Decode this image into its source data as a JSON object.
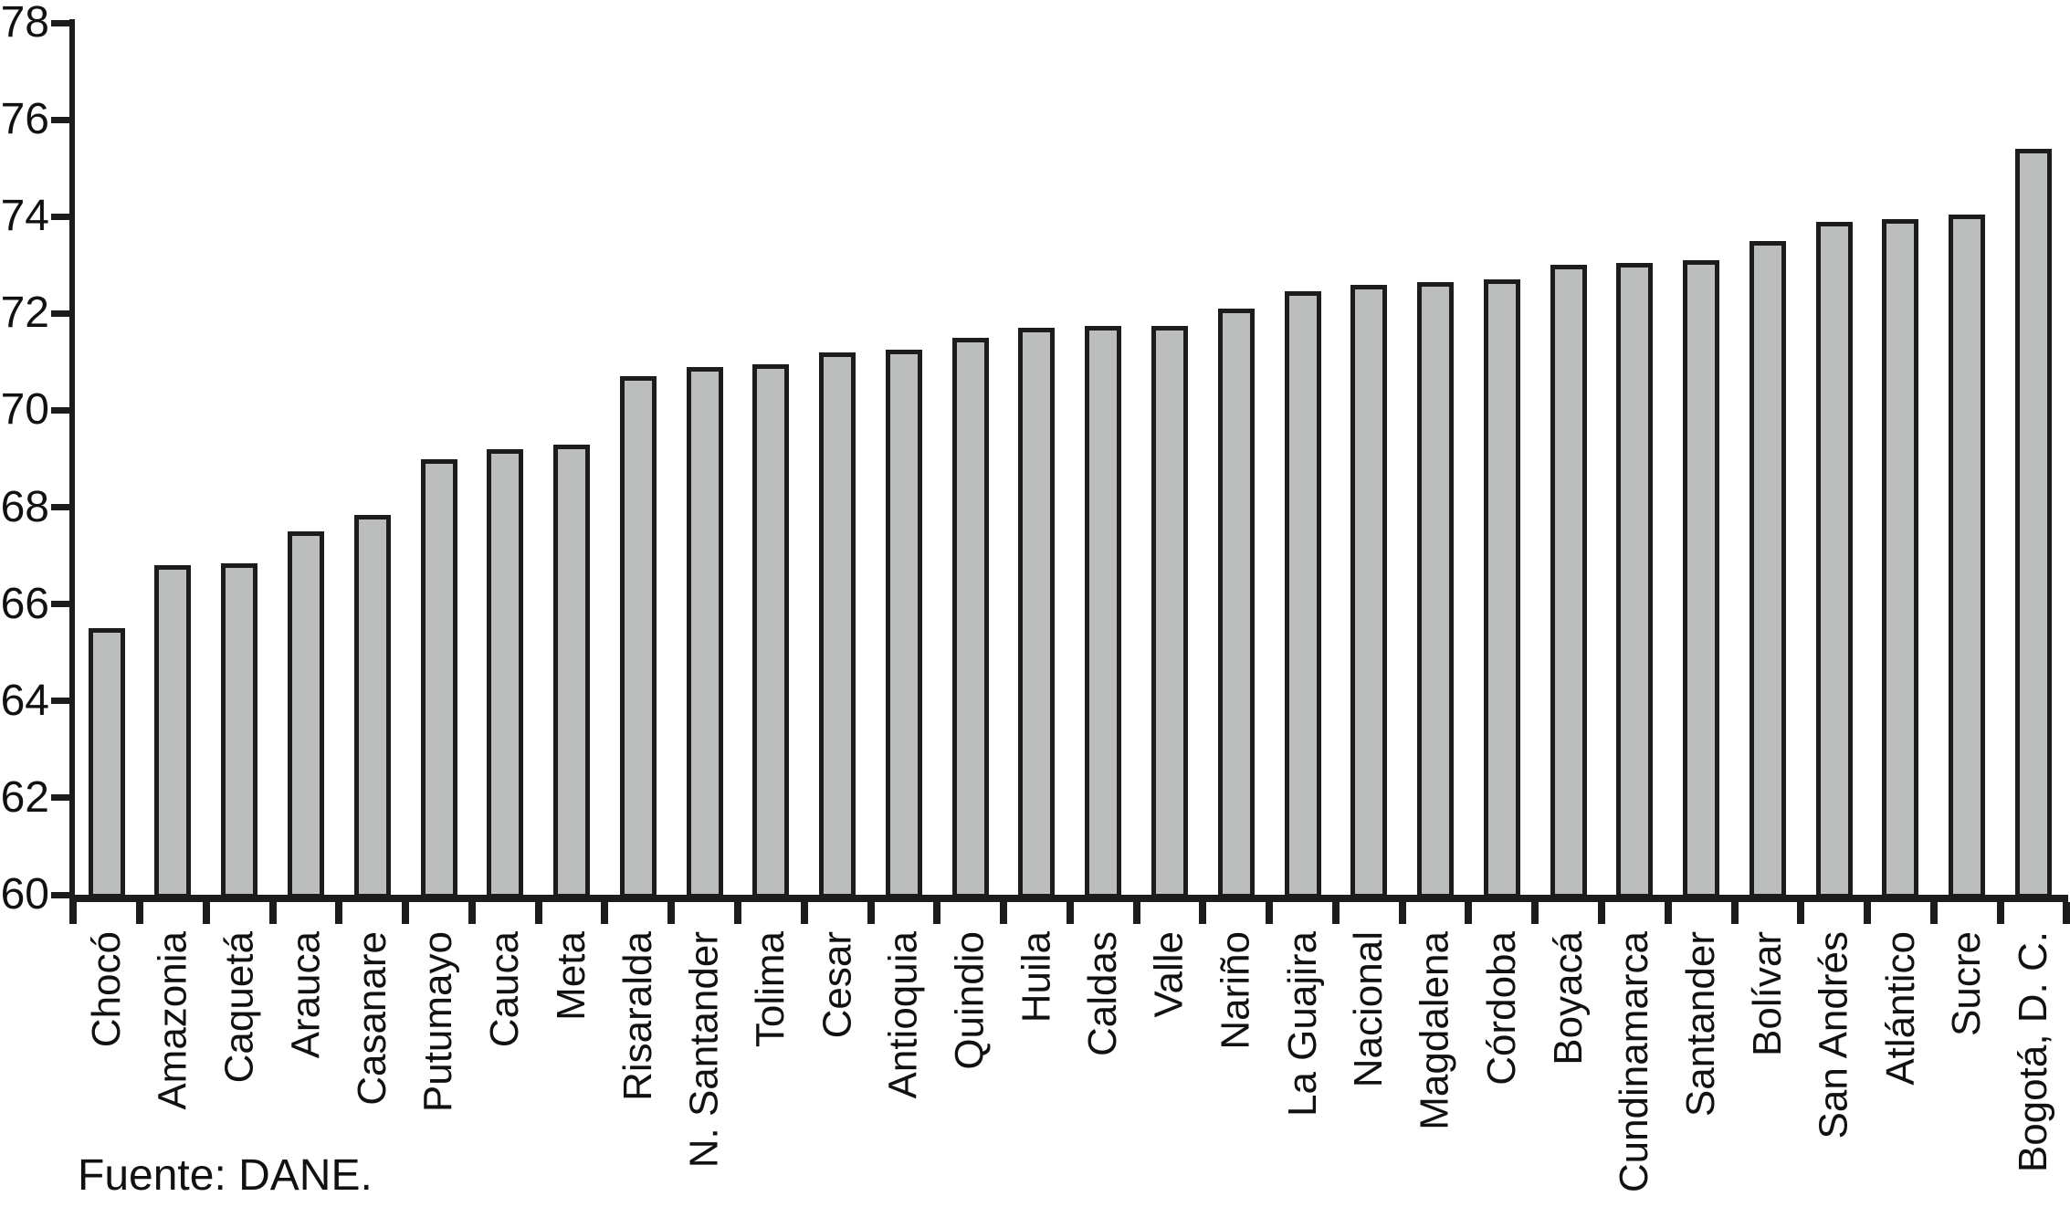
{
  "chart_data": {
    "type": "bar",
    "title": "",
    "xlabel": "",
    "ylabel": "",
    "categories": [
      "Chocó",
      "Amazonia",
      "Caquetá",
      "Arauca",
      "Casanare",
      "Putumayo",
      "Cauca",
      "Meta",
      "Risaralda",
      "N. Santander",
      "Tolima",
      "Cesar",
      "Antioquia",
      "Quindio",
      "Huila",
      "Caldas",
      "Valle",
      "Nariño",
      "La Guajira",
      "Nacional",
      "Magdalena",
      "Córdoba",
      "Boyacá",
      "Cundinamarca",
      "Santander",
      "Bolívar",
      "San Andrés",
      "Atlántico",
      "Sucre",
      "Bogotá, D. C."
    ],
    "values": [
      65.5,
      66.8,
      66.85,
      67.5,
      67.85,
      69.0,
      69.2,
      69.3,
      70.7,
      70.9,
      70.95,
      71.2,
      71.25,
      71.5,
      71.7,
      71.75,
      71.75,
      72.1,
      72.45,
      72.6,
      72.65,
      72.7,
      73.0,
      73.05,
      73.1,
      73.5,
      73.9,
      73.95,
      74.05,
      75.4
    ],
    "ylim": [
      60,
      78
    ],
    "yticks": [
      60,
      62,
      64,
      66,
      68,
      70,
      72,
      74,
      76,
      78
    ],
    "grid": false,
    "legend_position": "none",
    "bar_fill_color": "#bcbebe",
    "bar_border_color": "#1c1c1c",
    "axis_color": "#1c1c1c",
    "source_note": "Fuente: DANE."
  }
}
